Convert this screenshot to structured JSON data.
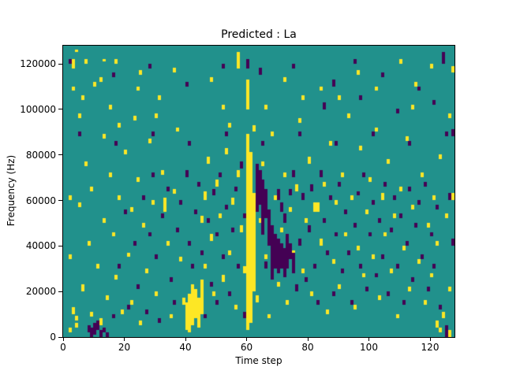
{
  "figure": {
    "title": "Predicted : La",
    "xlabel": "Time step",
    "ylabel": "Frequency (Hz)"
  },
  "chart_data": {
    "type": "heatmap",
    "title": "Predicted : La",
    "xlabel": "Time step",
    "ylabel": "Frequency (Hz)",
    "x_range": [
      0,
      128
    ],
    "y_range": [
      0,
      128000
    ],
    "x_ticks": [
      0,
      20,
      40,
      60,
      80,
      100,
      120
    ],
    "y_ticks": [
      0,
      20000,
      40000,
      60000,
      80000,
      100000,
      120000
    ],
    "grid": false,
    "legend": "none",
    "cell_grid": [
      128,
      128
    ],
    "y_hz_per_cell": 1000,
    "colors": {
      "background_value_color": "#21918c",
      "high_value_color": "#fde725",
      "low_value_color": "#440154",
      "axis_color": "#000000",
      "figure_background": "#ffffff"
    },
    "value_legend": {
      "background_value": 0,
      "high_value": 1,
      "low_value": -1
    },
    "yellow_spans": [
      [
        2,
        2,
        3
      ],
      [
        2,
        34,
        35
      ],
      [
        2,
        60,
        61
      ],
      [
        3,
        10,
        12
      ],
      [
        3,
        108,
        109
      ],
      [
        3,
        118,
        121
      ],
      [
        4,
        4,
        5
      ],
      [
        4,
        7,
        8
      ],
      [
        4,
        125,
        125
      ],
      [
        5,
        57,
        58
      ],
      [
        5,
        96,
        97
      ],
      [
        6,
        20,
        22
      ],
      [
        6,
        104,
        105
      ],
      [
        7,
        75,
        76
      ],
      [
        7,
        120,
        121
      ],
      [
        8,
        40,
        41
      ],
      [
        9,
        9,
        10
      ],
      [
        9,
        64,
        65
      ],
      [
        10,
        110,
        111
      ],
      [
        11,
        30,
        31
      ],
      [
        12,
        5,
        7
      ],
      [
        12,
        112,
        113
      ],
      [
        13,
        50,
        51
      ],
      [
        13,
        87,
        88
      ],
      [
        13,
        121,
        121
      ],
      [
        14,
        16,
        17
      ],
      [
        15,
        70,
        71
      ],
      [
        15,
        100,
        101
      ],
      [
        16,
        44,
        45
      ],
      [
        17,
        25,
        26
      ],
      [
        17,
        120,
        121
      ],
      [
        18,
        60,
        61
      ],
      [
        18,
        92,
        93
      ],
      [
        19,
        10,
        11
      ],
      [
        20,
        80,
        81
      ],
      [
        21,
        35,
        36
      ],
      [
        22,
        14,
        15
      ],
      [
        22,
        55,
        56
      ],
      [
        23,
        95,
        96
      ],
      [
        24,
        68,
        69
      ],
      [
        24,
        108,
        109
      ],
      [
        25,
        5,
        6
      ],
      [
        25,
        115,
        116
      ],
      [
        26,
        48,
        49
      ],
      [
        27,
        28,
        29
      ],
      [
        28,
        85,
        86
      ],
      [
        29,
        58,
        59
      ],
      [
        30,
        18,
        19
      ],
      [
        30,
        96,
        97
      ],
      [
        31,
        104,
        105
      ],
      [
        32,
        71,
        72
      ],
      [
        33,
        55,
        60
      ],
      [
        34,
        40,
        41
      ],
      [
        35,
        8,
        9
      ],
      [
        36,
        63,
        64
      ],
      [
        36,
        116,
        117
      ],
      [
        37,
        90,
        91
      ],
      [
        38,
        33,
        34
      ],
      [
        39,
        14,
        16
      ],
      [
        40,
        3,
        14
      ],
      [
        41,
        2,
        18
      ],
      [
        42,
        5,
        22
      ],
      [
        43,
        8,
        20
      ],
      [
        44,
        4,
        16
      ],
      [
        45,
        10,
        24
      ],
      [
        45,
        50,
        52
      ],
      [
        46,
        30,
        31
      ],
      [
        46,
        60,
        63
      ],
      [
        47,
        76,
        78
      ],
      [
        48,
        42,
        44
      ],
      [
        48,
        112,
        113
      ],
      [
        49,
        18,
        19
      ],
      [
        50,
        66,
        68
      ],
      [
        51,
        52,
        53
      ],
      [
        52,
        24,
        26
      ],
      [
        52,
        100,
        101
      ],
      [
        53,
        80,
        82
      ],
      [
        54,
        36,
        37
      ],
      [
        54,
        92,
        93
      ],
      [
        55,
        58,
        60
      ],
      [
        56,
        12,
        13
      ],
      [
        57,
        70,
        72
      ],
      [
        57,
        118,
        124
      ],
      [
        58,
        46,
        48
      ],
      [
        59,
        28,
        30
      ],
      [
        60,
        3,
        88
      ],
      [
        60,
        100,
        112
      ],
      [
        61,
        6,
        80
      ],
      [
        62,
        20,
        62
      ],
      [
        62,
        90,
        92
      ],
      [
        63,
        15,
        17
      ],
      [
        64,
        50,
        51
      ],
      [
        65,
        75,
        76
      ],
      [
        66,
        34,
        35
      ],
      [
        66,
        100,
        101
      ],
      [
        67,
        8,
        9
      ],
      [
        68,
        88,
        89
      ],
      [
        69,
        60,
        61
      ],
      [
        70,
        22,
        23
      ],
      [
        71,
        46,
        47
      ],
      [
        72,
        70,
        71
      ],
      [
        72,
        112,
        113
      ],
      [
        73,
        14,
        15
      ],
      [
        74,
        55,
        56
      ],
      [
        75,
        36,
        37
      ],
      [
        76,
        64,
        66
      ],
      [
        77,
        94,
        95
      ],
      [
        78,
        28,
        29
      ],
      [
        78,
        104,
        105
      ],
      [
        79,
        50,
        51
      ],
      [
        80,
        76,
        78
      ],
      [
        81,
        18,
        19
      ],
      [
        82,
        55,
        58
      ],
      [
        83,
        55,
        58
      ],
      [
        84,
        40,
        42
      ],
      [
        84,
        108,
        109
      ],
      [
        85,
        66,
        67
      ],
      [
        86,
        10,
        11
      ],
      [
        87,
        84,
        85
      ],
      [
        88,
        32,
        33
      ],
      [
        89,
        58,
        59
      ],
      [
        90,
        21,
        22
      ],
      [
        90,
        104,
        105
      ],
      [
        91,
        70,
        71
      ],
      [
        92,
        44,
        45
      ],
      [
        93,
        96,
        97
      ],
      [
        94,
        60,
        61
      ],
      [
        95,
        12,
        13
      ],
      [
        96,
        38,
        39
      ],
      [
        96,
        115,
        116
      ],
      [
        97,
        82,
        83
      ],
      [
        98,
        26,
        27
      ],
      [
        99,
        54,
        55
      ],
      [
        100,
        68,
        69
      ],
      [
        101,
        34,
        35
      ],
      [
        102,
        90,
        91
      ],
      [
        102,
        108,
        109
      ],
      [
        103,
        16,
        17
      ],
      [
        104,
        60,
        62
      ],
      [
        105,
        44,
        45
      ],
      [
        106,
        76,
        77
      ],
      [
        107,
        28,
        29
      ],
      [
        108,
        52,
        53
      ],
      [
        109,
        8,
        9
      ],
      [
        110,
        64,
        65
      ],
      [
        110,
        120,
        121
      ],
      [
        111,
        38,
        39
      ],
      [
        112,
        86,
        87
      ],
      [
        113,
        20,
        21
      ],
      [
        114,
        56,
        57
      ],
      [
        114,
        100,
        101
      ],
      [
        115,
        110,
        111
      ],
      [
        116,
        32,
        33
      ],
      [
        117,
        70,
        71
      ],
      [
        118,
        14,
        15
      ],
      [
        119,
        48,
        49
      ],
      [
        120,
        26,
        27
      ],
      [
        120,
        118,
        119
      ],
      [
        121,
        60,
        61
      ],
      [
        122,
        4,
        6
      ],
      [
        122,
        40,
        41
      ],
      [
        123,
        2,
        3
      ],
      [
        123,
        78,
        79
      ],
      [
        124,
        8,
        10
      ],
      [
        125,
        52,
        53
      ],
      [
        126,
        0,
        2
      ],
      [
        126,
        20,
        21
      ],
      [
        126,
        96,
        97
      ],
      [
        127,
        60,
        62
      ],
      [
        127,
        116,
        118
      ]
    ],
    "purple_spans": [
      [
        2,
        120,
        121
      ],
      [
        5,
        88,
        89
      ],
      [
        8,
        2,
        4
      ],
      [
        9,
        0,
        3
      ],
      [
        10,
        1,
        5
      ],
      [
        11,
        3,
        6
      ],
      [
        12,
        0,
        2
      ],
      [
        13,
        2,
        3
      ],
      [
        14,
        0,
        1
      ],
      [
        16,
        8,
        9
      ],
      [
        16,
        114,
        115
      ],
      [
        17,
        84,
        85
      ],
      [
        18,
        30,
        31
      ],
      [
        20,
        54,
        55
      ],
      [
        21,
        12,
        13
      ],
      [
        23,
        40,
        41
      ],
      [
        24,
        21,
        22
      ],
      [
        26,
        60,
        61
      ],
      [
        27,
        10,
        11
      ],
      [
        28,
        44,
        45
      ],
      [
        28,
        118,
        119
      ],
      [
        29,
        70,
        71
      ],
      [
        29,
        88,
        89
      ],
      [
        30,
        34,
        35
      ],
      [
        31,
        6,
        7
      ],
      [
        32,
        52,
        53
      ],
      [
        34,
        64,
        65
      ],
      [
        35,
        24,
        25
      ],
      [
        36,
        14,
        15
      ],
      [
        37,
        46,
        47
      ],
      [
        38,
        58,
        59
      ],
      [
        40,
        70,
        72
      ],
      [
        40,
        110,
        111
      ],
      [
        41,
        40,
        41
      ],
      [
        41,
        84,
        85
      ],
      [
        42,
        30,
        31
      ],
      [
        43,
        54,
        55
      ],
      [
        44,
        66,
        67
      ],
      [
        45,
        36,
        37
      ],
      [
        46,
        8,
        9
      ],
      [
        47,
        50,
        51
      ],
      [
        48,
        22,
        23
      ],
      [
        49,
        62,
        64
      ],
      [
        50,
        14,
        15
      ],
      [
        50,
        44,
        45
      ],
      [
        51,
        70,
        71
      ],
      [
        52,
        34,
        35
      ],
      [
        52,
        118,
        119
      ],
      [
        53,
        56,
        57
      ],
      [
        53,
        88,
        89
      ],
      [
        54,
        18,
        19
      ],
      [
        55,
        46,
        47
      ],
      [
        56,
        64,
        65
      ],
      [
        57,
        30,
        31
      ],
      [
        58,
        74,
        76
      ],
      [
        59,
        8,
        10
      ],
      [
        59,
        52,
        53
      ],
      [
        60,
        118,
        121
      ],
      [
        63,
        55,
        75
      ],
      [
        64,
        58,
        72
      ],
      [
        64,
        115,
        117
      ],
      [
        65,
        45,
        68
      ],
      [
        65,
        84,
        85
      ],
      [
        66,
        30,
        32
      ],
      [
        66,
        52,
        64
      ],
      [
        67,
        40,
        55
      ],
      [
        68,
        25,
        48
      ],
      [
        69,
        30,
        44
      ],
      [
        70,
        28,
        42
      ],
      [
        70,
        60,
        64
      ],
      [
        71,
        30,
        40
      ],
      [
        71,
        55,
        58
      ],
      [
        72,
        26,
        38
      ],
      [
        72,
        50,
        53
      ],
      [
        73,
        30,
        44
      ],
      [
        74,
        34,
        40
      ],
      [
        74,
        62,
        64
      ],
      [
        75,
        28,
        36
      ],
      [
        75,
        70,
        72
      ],
      [
        75,
        118,
        119
      ],
      [
        76,
        20,
        22
      ],
      [
        77,
        40,
        42
      ],
      [
        77,
        88,
        89
      ],
      [
        78,
        60,
        62
      ],
      [
        79,
        24,
        25
      ],
      [
        80,
        46,
        48
      ],
      [
        81,
        64,
        66
      ],
      [
        82,
        30,
        31
      ],
      [
        83,
        14,
        15
      ],
      [
        84,
        70,
        72
      ],
      [
        85,
        50,
        51
      ],
      [
        85,
        100,
        102
      ],
      [
        86,
        36,
        37
      ],
      [
        87,
        60,
        61
      ],
      [
        88,
        18,
        19
      ],
      [
        88,
        110,
        112
      ],
      [
        89,
        44,
        45
      ],
      [
        89,
        84,
        85
      ],
      [
        90,
        66,
        67
      ],
      [
        91,
        28,
        29
      ],
      [
        92,
        54,
        55
      ],
      [
        93,
        36,
        37
      ],
      [
        94,
        14,
        15
      ],
      [
        95,
        48,
        49
      ],
      [
        95,
        120,
        121
      ],
      [
        96,
        62,
        63
      ],
      [
        97,
        30,
        31
      ],
      [
        97,
        104,
        105
      ],
      [
        98,
        70,
        71
      ],
      [
        99,
        20,
        21
      ],
      [
        100,
        44,
        45
      ],
      [
        101,
        58,
        59
      ],
      [
        101,
        88,
        89
      ],
      [
        102,
        26,
        27
      ],
      [
        103,
        50,
        51
      ],
      [
        104,
        34,
        35
      ],
      [
        104,
        114,
        115
      ],
      [
        105,
        66,
        67
      ],
      [
        106,
        18,
        19
      ],
      [
        107,
        46,
        47
      ],
      [
        108,
        60,
        61
      ],
      [
        109,
        30,
        31
      ],
      [
        109,
        98,
        99
      ],
      [
        110,
        52,
        53
      ],
      [
        111,
        14,
        15
      ],
      [
        112,
        40,
        41
      ],
      [
        113,
        64,
        65
      ],
      [
        113,
        84,
        85
      ],
      [
        114,
        24,
        25
      ],
      [
        115,
        48,
        49
      ],
      [
        116,
        58,
        59
      ],
      [
        116,
        108,
        109
      ],
      [
        117,
        34,
        35
      ],
      [
        118,
        66,
        67
      ],
      [
        119,
        20,
        21
      ],
      [
        120,
        44,
        45
      ],
      [
        121,
        30,
        31
      ],
      [
        121,
        102,
        103
      ],
      [
        122,
        56,
        57
      ],
      [
        123,
        12,
        13
      ],
      [
        124,
        120,
        124
      ],
      [
        125,
        0,
        4
      ],
      [
        125,
        88,
        89
      ],
      [
        126,
        60,
        62
      ],
      [
        127,
        40,
        42
      ],
      [
        127,
        88,
        90
      ]
    ]
  }
}
